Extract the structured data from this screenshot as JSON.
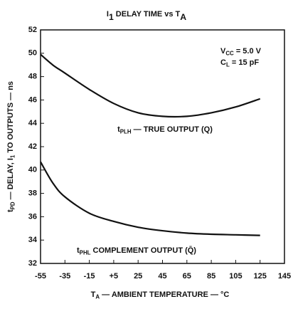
{
  "chart_data": {
    "type": "line",
    "title": [
      "I",
      "1",
      " DELAY TIME vs T",
      "A"
    ],
    "xlabel": [
      "T",
      "A",
      " — AMBIENT TEMPERATURE — °C"
    ],
    "ylabel": [
      "t",
      "PD",
      " — DELAY, I",
      "1",
      " TO OUTPUTS — ns"
    ],
    "annotations": [
      [
        "V",
        "CC",
        " = 5.0 V"
      ],
      [
        "C",
        "L",
        " = 15 pF"
      ],
      [
        "t",
        "PLH",
        " — TRUE OUTPUT (Q)"
      ],
      [
        "t",
        "PHL",
        " COMPLEMENT OUTPUT (Q̄)"
      ]
    ],
    "x": [
      -55,
      -45,
      -35,
      -15,
      5,
      25,
      45,
      65,
      85,
      105,
      125
    ],
    "series": [
      {
        "color": "#111111",
        "values": [
          49.9,
          49.0,
          48.3,
          46.9,
          45.7,
          44.9,
          44.6,
          44.6,
          44.9,
          45.4,
          46.1
        ]
      },
      {
        "color": "#111111",
        "values": [
          40.7,
          38.9,
          37.7,
          36.3,
          35.6,
          35.1,
          34.8,
          34.6,
          34.5,
          34.45,
          34.4
        ]
      }
    ],
    "xlim": [
      -55,
      145
    ],
    "xticks": [
      -55,
      -35,
      -15,
      {
        "value": 5,
        "label": "+5"
      },
      25,
      45,
      65,
      85,
      105,
      125,
      145
    ],
    "ylim": [
      32,
      52
    ],
    "yticks": [
      32,
      34,
      36,
      38,
      40,
      42,
      44,
      46,
      48,
      50,
      52
    ],
    "grid": false
  }
}
